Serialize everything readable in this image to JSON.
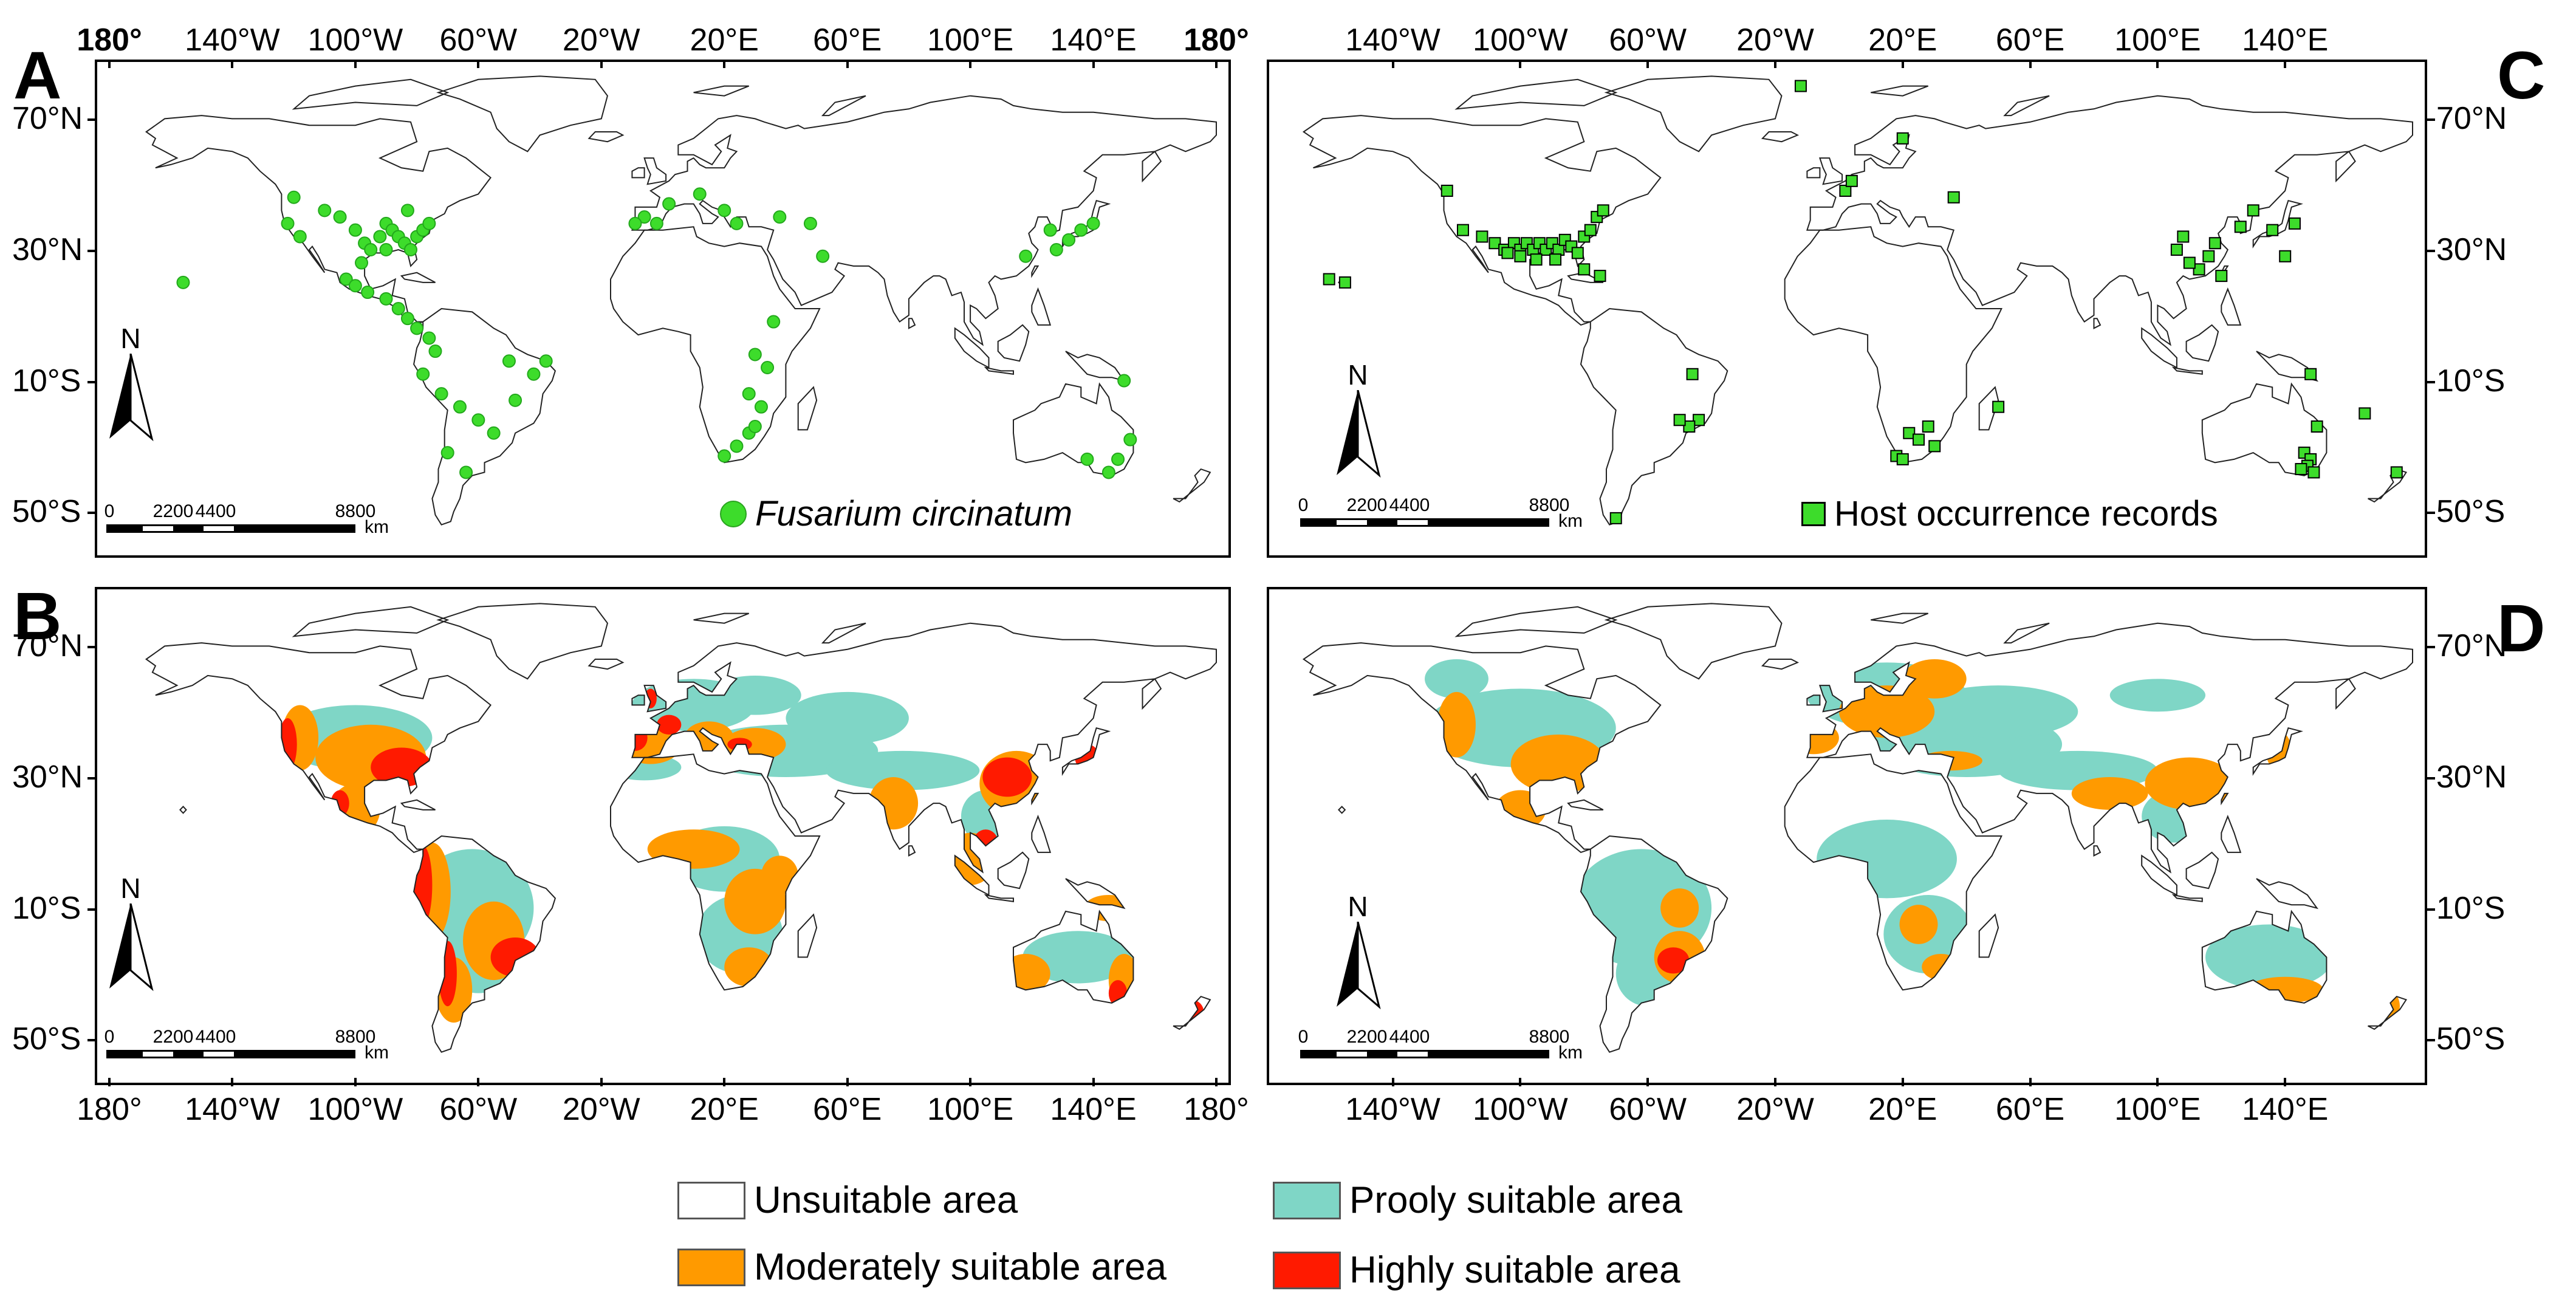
{
  "panels": [
    {
      "id": "A",
      "label": "A"
    },
    {
      "id": "B",
      "label": "B"
    },
    {
      "id": "C",
      "label": "C"
    },
    {
      "id": "D",
      "label": "D"
    }
  ],
  "left_axis": {
    "top_ticks": [
      "180°",
      "140°W",
      "100°W",
      "60°W",
      "20°W",
      "20°E",
      "60°E",
      "100°E",
      "140°E",
      "180°"
    ],
    "bottom_ticks": [
      "180°",
      "140°W",
      "100°W",
      "60°W",
      "20°W",
      "20°E",
      "60°E",
      "100°E",
      "140°E",
      "180°"
    ],
    "lat_ticks": [
      "70°N",
      "30°N",
      "10°S",
      "50°S"
    ]
  },
  "right_axis": {
    "top_ticks": [
      "140°W",
      "100°W",
      "60°W",
      "20°W",
      "20°E",
      "60°E",
      "100°E",
      "140°E"
    ],
    "bottom_ticks": [
      "140°W",
      "100°W",
      "60°W",
      "20°W",
      "20°E",
      "60°E",
      "100°E",
      "140°E"
    ],
    "lat_ticks": [
      "70°N",
      "30°N",
      "10°S",
      "50°S"
    ]
  },
  "north_arrow": {
    "label": "N"
  },
  "scale_bar": {
    "labels": [
      "0",
      "2200",
      "4400",
      "8800"
    ],
    "unit": "km"
  },
  "panel_a_legend": {
    "label": "Fusarium circinatum",
    "color": "#3ddc2b"
  },
  "panel_c_legend": {
    "label": "Host occurrence records",
    "color": "#3ddc2b"
  },
  "colors": {
    "unsuitable": "#ffffff",
    "poor": "#7fd6c6",
    "moderate": "#ff9a00",
    "high": "#ff1a00",
    "point": "#3ddc2b"
  },
  "legend": [
    {
      "label": "Unsuitable area",
      "color": "#ffffff"
    },
    {
      "label": "Prooly suitable area",
      "color": "#7fd6c6"
    },
    {
      "label": "Moderately suitable area",
      "color": "#ff9a00"
    },
    {
      "label": "Highly suitable area",
      "color": "#ff1a00"
    }
  ],
  "fusarium_points": [
    [
      -122,
      38
    ],
    [
      -120,
      46
    ],
    [
      -118,
      34
    ],
    [
      -110,
      42
    ],
    [
      -105,
      40
    ],
    [
      -100,
      36
    ],
    [
      -97,
      32
    ],
    [
      -95,
      30
    ],
    [
      -92,
      34
    ],
    [
      -90,
      38
    ],
    [
      -88,
      36
    ],
    [
      -86,
      34
    ],
    [
      -84,
      32
    ],
    [
      -82,
      30
    ],
    [
      -80,
      34
    ],
    [
      -78,
      36
    ],
    [
      -76,
      38
    ],
    [
      -83,
      42
    ],
    [
      -90,
      30
    ],
    [
      -98,
      26
    ],
    [
      -103,
      21
    ],
    [
      -100,
      19
    ],
    [
      -96,
      17
    ],
    [
      -90,
      15
    ],
    [
      -86,
      12
    ],
    [
      -83,
      9
    ],
    [
      -80,
      6
    ],
    [
      -76,
      3
    ],
    [
      -74,
      -1
    ],
    [
      -78,
      -8
    ],
    [
      -72,
      -14
    ],
    [
      -66,
      -18
    ],
    [
      -60,
      -22
    ],
    [
      -55,
      -26
    ],
    [
      -48,
      -16
    ],
    [
      -42,
      -8
    ],
    [
      -38,
      -4
    ],
    [
      -50,
      -4
    ],
    [
      -70,
      -32
    ],
    [
      -64,
      -38
    ],
    [
      -156,
      20
    ],
    [
      -6,
      40
    ],
    [
      -2,
      38
    ],
    [
      2,
      44
    ],
    [
      -9,
      38
    ],
    [
      20,
      42
    ],
    [
      24,
      38
    ],
    [
      38,
      40
    ],
    [
      48,
      38
    ],
    [
      52,
      28
    ],
    [
      12,
      47
    ],
    [
      36,
      8
    ],
    [
      30,
      -2
    ],
    [
      34,
      -6
    ],
    [
      28,
      -14
    ],
    [
      32,
      -18
    ],
    [
      28,
      -26
    ],
    [
      24,
      -30
    ],
    [
      20,
      -33
    ],
    [
      30,
      -24
    ],
    [
      126,
      36
    ],
    [
      132,
      33
    ],
    [
      136,
      36
    ],
    [
      140,
      38
    ],
    [
      128,
      30
    ],
    [
      118,
      28
    ],
    [
      152,
      -28
    ],
    [
      148,
      -34
    ],
    [
      145,
      -38
    ],
    [
      138,
      -34
    ],
    [
      150,
      -10
    ]
  ],
  "host_points": [
    [
      -123,
      48
    ],
    [
      -118,
      36
    ],
    [
      -112,
      34
    ],
    [
      -108,
      32
    ],
    [
      -105,
      30
    ],
    [
      -102,
      32
    ],
    [
      -100,
      30
    ],
    [
      -98,
      32
    ],
    [
      -96,
      30
    ],
    [
      -94,
      32
    ],
    [
      -92,
      30
    ],
    [
      -90,
      32
    ],
    [
      -88,
      30
    ],
    [
      -86,
      33
    ],
    [
      -84,
      31
    ],
    [
      -82,
      29
    ],
    [
      -80,
      34
    ],
    [
      -78,
      36
    ],
    [
      -76,
      40
    ],
    [
      -74,
      42
    ],
    [
      -100,
      28
    ],
    [
      -104,
      29
    ],
    [
      -95,
      27
    ],
    [
      -89,
      27
    ],
    [
      -80,
      24
    ],
    [
      -75,
      22
    ],
    [
      -155,
      20
    ],
    [
      -160,
      21
    ],
    [
      -12,
      80
    ],
    [
      -46,
      -8
    ],
    [
      -44,
      -22
    ],
    [
      -47,
      -24
    ],
    [
      -50,
      -22
    ],
    [
      -70,
      -52
    ],
    [
      2,
      48
    ],
    [
      4,
      51
    ],
    [
      20,
      64
    ],
    [
      36,
      46
    ],
    [
      22,
      -26
    ],
    [
      25,
      -28
    ],
    [
      28,
      -24
    ],
    [
      30,
      -30
    ],
    [
      18,
      -33
    ],
    [
      20,
      -34
    ],
    [
      50,
      -18
    ],
    [
      126,
      37
    ],
    [
      130,
      42
    ],
    [
      136,
      36
    ],
    [
      118,
      32
    ],
    [
      116,
      28
    ],
    [
      113,
      24
    ],
    [
      110,
      26
    ],
    [
      120,
      22
    ],
    [
      106,
      30
    ],
    [
      108,
      34
    ],
    [
      143,
      38
    ],
    [
      140,
      28
    ],
    [
      150,
      -24
    ],
    [
      146,
      -32
    ],
    [
      148,
      -34
    ],
    [
      147,
      -36
    ],
    [
      149,
      -38
    ],
    [
      145,
      -37
    ],
    [
      165,
      -20
    ],
    [
      175,
      -38
    ],
    [
      148,
      -8
    ]
  ]
}
